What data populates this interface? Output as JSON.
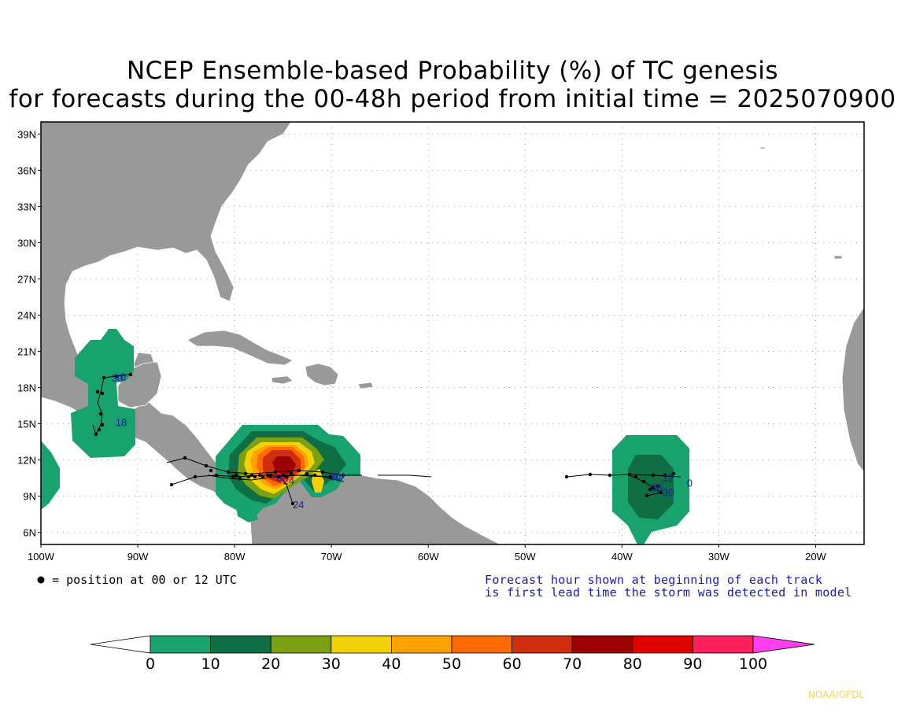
{
  "title_line1": "NCEP Ensemble-based Probability (%) of TC genesis",
  "title_line2": "for forecasts during the 00-48h period from initial time = 2025070900",
  "map": {
    "lat_labels": [
      "39N",
      "36N",
      "33N",
      "30N",
      "27N",
      "24N",
      "21N",
      "18N",
      "15N",
      "12N",
      "9N",
      "6N"
    ],
    "lon_labels": [
      "100W",
      "90W",
      "80W",
      "70W",
      "60W",
      "50W",
      "40W",
      "30W",
      "20W"
    ],
    "land_color": "#999999",
    "ocean_color": "#ffffff",
    "grid_style": "dotted"
  },
  "track_labels": [
    {
      "text": "30",
      "lon": -92.7,
      "lat": 18.5
    },
    {
      "text": "0",
      "lon": -91.8,
      "lat": 18.6
    },
    {
      "text": "18",
      "lon": -92.3,
      "lat": 14.8
    },
    {
      "text": "24",
      "lon": -74.0,
      "lat": 8.0
    },
    {
      "text": "24",
      "lon": -75.0,
      "lat": 10.0
    },
    {
      "text": "0",
      "lon": -75.7,
      "lat": 10.2
    },
    {
      "text": "30",
      "lon": -70.2,
      "lat": 10.3
    },
    {
      "text": "42",
      "lon": -69.8,
      "lat": 10.2
    },
    {
      "text": "12",
      "lon": -35.8,
      "lat": 10.2
    },
    {
      "text": "0",
      "lon": -33.3,
      "lat": 9.8
    },
    {
      "text": "30",
      "lon": -35.8,
      "lat": 9.0
    },
    {
      "text": "36",
      "lon": -37.0,
      "lat": 9.4
    }
  ],
  "colorbar": {
    "thresholds": [
      "0",
      "10",
      "20",
      "30",
      "40",
      "50",
      "60",
      "70",
      "80",
      "90",
      "100"
    ],
    "colors": [
      "#ffffff",
      "#17a26e",
      "#0f6e44",
      "#7ba112",
      "#f2d106",
      "#ffa200",
      "#ff6a00",
      "#d12e10",
      "#9c0000",
      "#e00000",
      "#ff1f5a",
      "#ff3fef"
    ]
  },
  "legend_position_text": "= position at 00 or 12 UTC",
  "forecast_note_line1": "Forecast hour shown at beginning of each track",
  "forecast_note_line2": "is first lead time the storm was detected in model",
  "credit": "NOAA/GFDL"
}
